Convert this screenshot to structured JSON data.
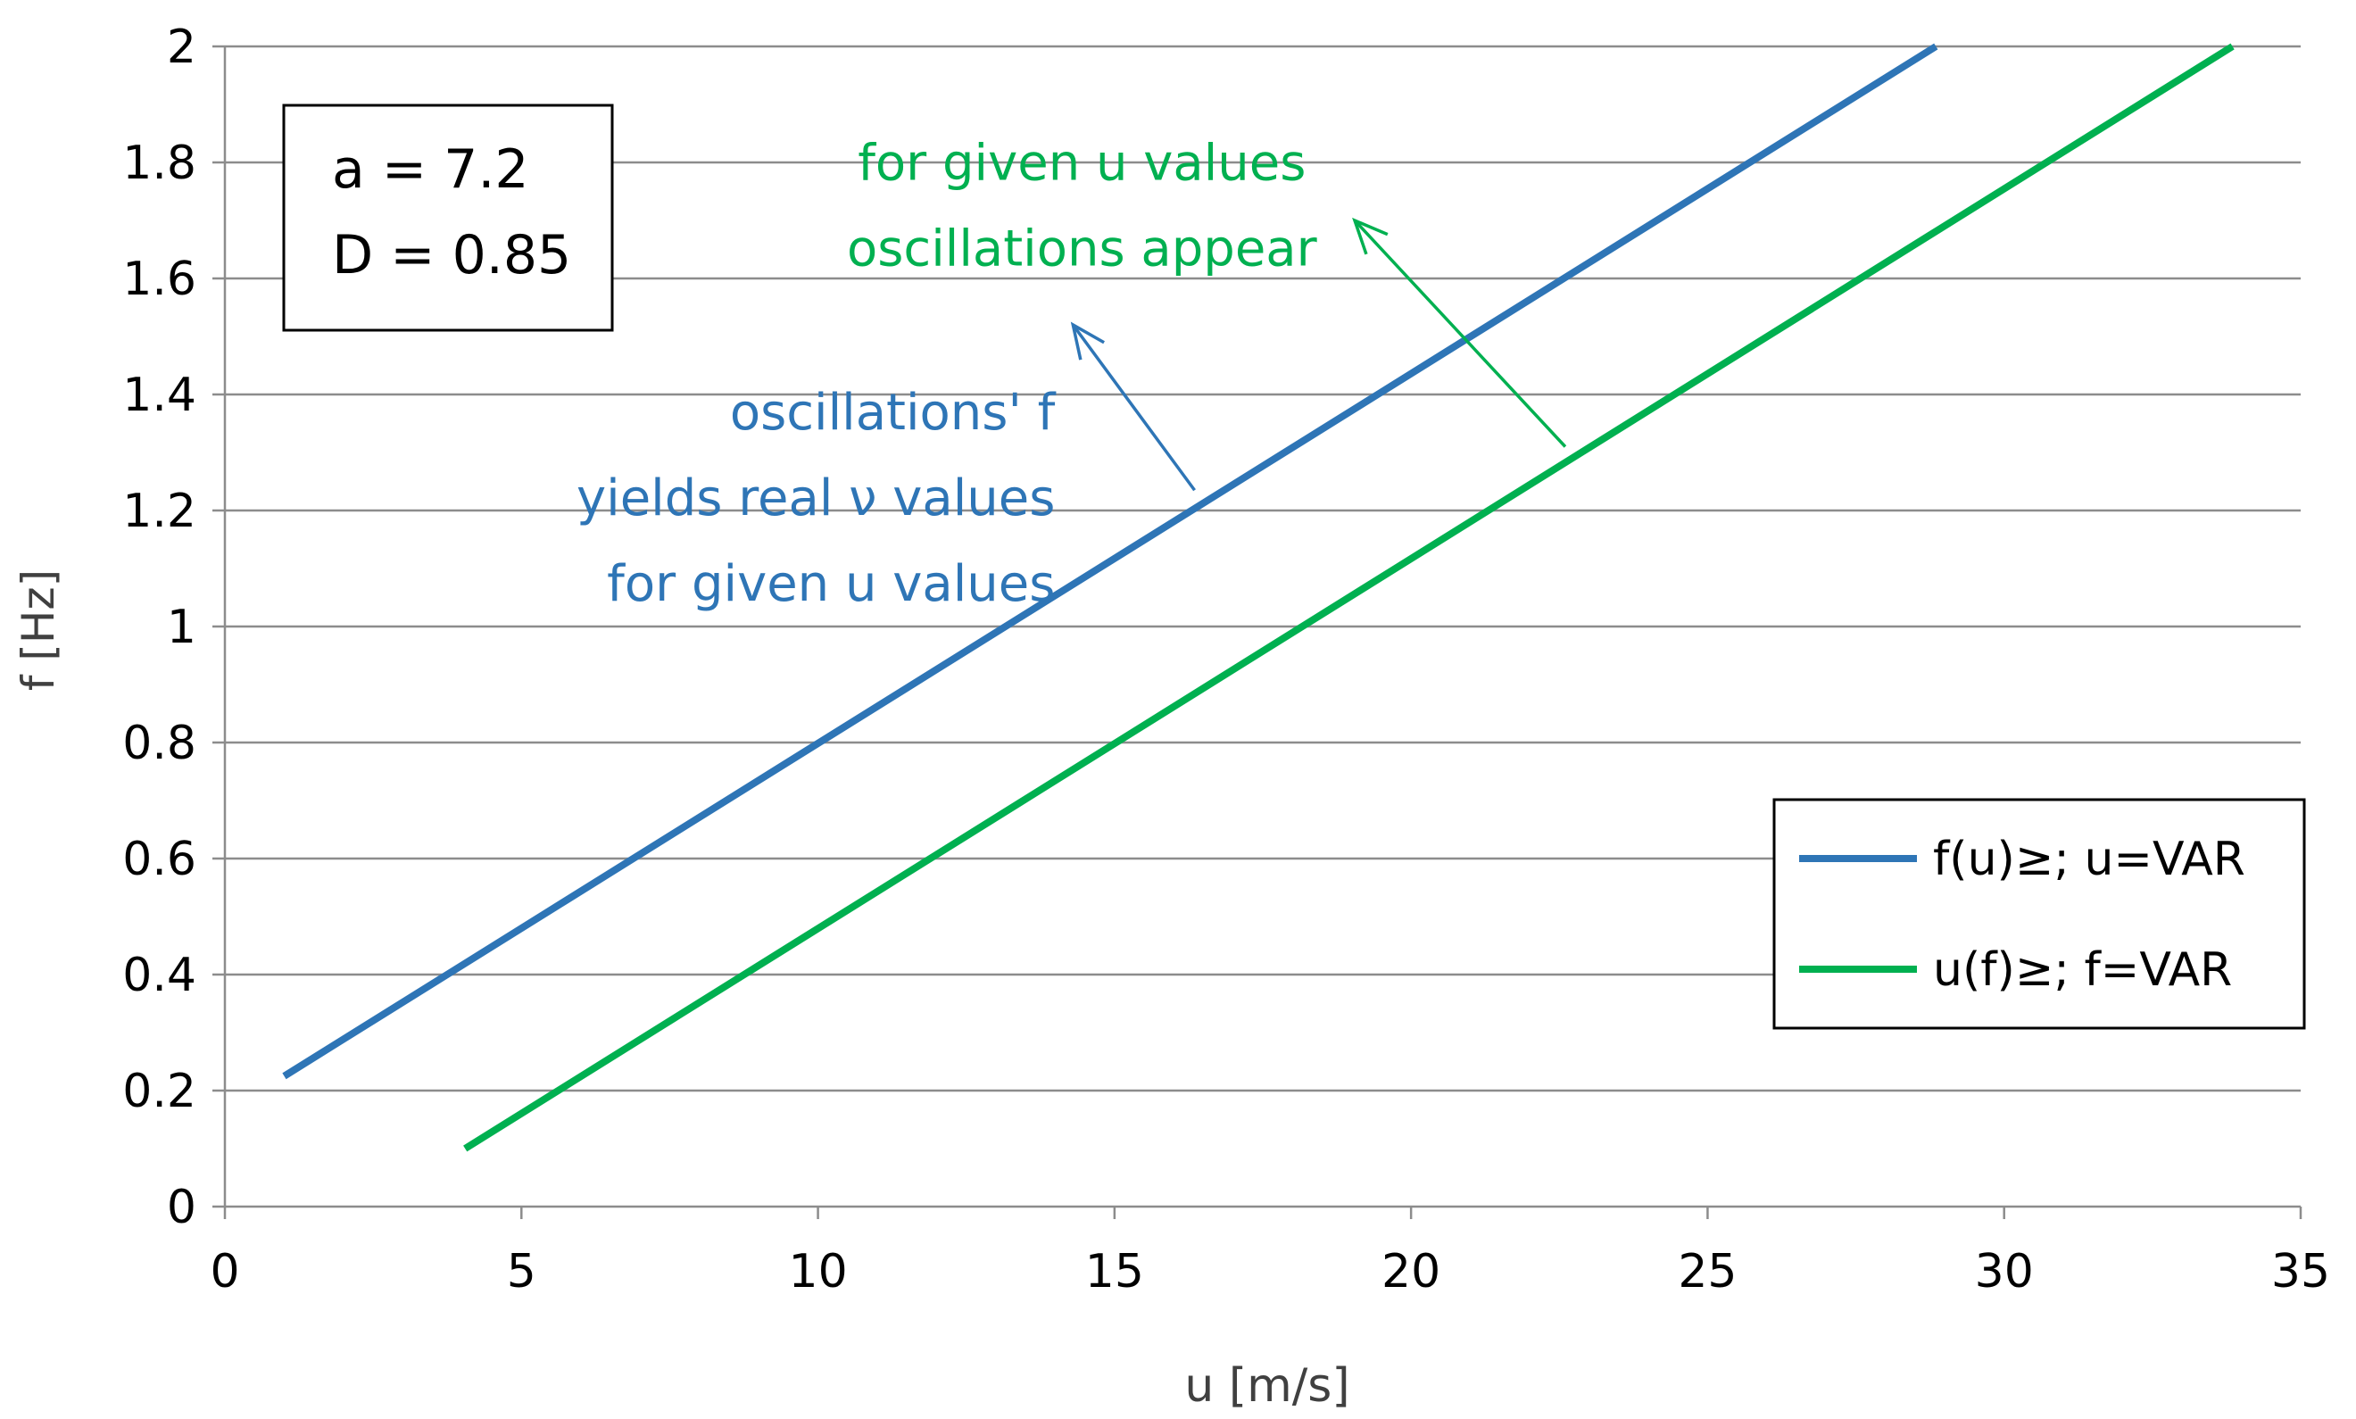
{
  "chart_data": {
    "type": "line",
    "xlabel": "u [m/s]",
    "ylabel": "f  [Hz]",
    "xlim": [
      0,
      35
    ],
    "ylim": [
      0,
      2
    ],
    "xticks": [
      0,
      5,
      10,
      15,
      20,
      25,
      30,
      35
    ],
    "yticks": [
      0,
      0.2,
      0.4,
      0.6,
      0.8,
      1,
      1.2,
      1.4,
      1.6,
      1.8,
      2
    ],
    "ytick_labels": [
      "0",
      "0.2",
      "0.4",
      "0.6",
      "0.8",
      "1",
      "1.2",
      "1.4",
      "1.6",
      "1.8",
      "2"
    ],
    "grid": "horizontal",
    "legend_position": "bottom-right",
    "series": [
      {
        "name": "f(u)≥;  u=VAR",
        "color": "#2e75b6",
        "x": [
          1,
          28.85
        ],
        "y": [
          0.225,
          2.0
        ]
      },
      {
        "name": "u(f)≥;  f=VAR",
        "color": "#00b050",
        "x": [
          4.05,
          33.85
        ],
        "y": [
          0.1,
          2.0
        ]
      }
    ],
    "param_box": [
      "a = 7.2",
      "D = 0.85"
    ],
    "annotations": [
      {
        "lines": [
          "oscillations' f",
          "yields real ν values",
          "for given u values"
        ],
        "color": "#2e75b6",
        "align": "right",
        "text_anchor": [
          14.0,
          1.34
        ],
        "arrow_from": [
          16.35,
          1.235
        ],
        "arrow_to": [
          14.3,
          1.52
        ]
      },
      {
        "lines": [
          "for given u values",
          "oscillations appear"
        ],
        "color": "#00b050",
        "align": "center",
        "text_anchor": [
          14.45,
          1.77
        ],
        "arrow_from": [
          22.6,
          1.31
        ],
        "arrow_to": [
          19.05,
          1.7
        ]
      }
    ]
  }
}
